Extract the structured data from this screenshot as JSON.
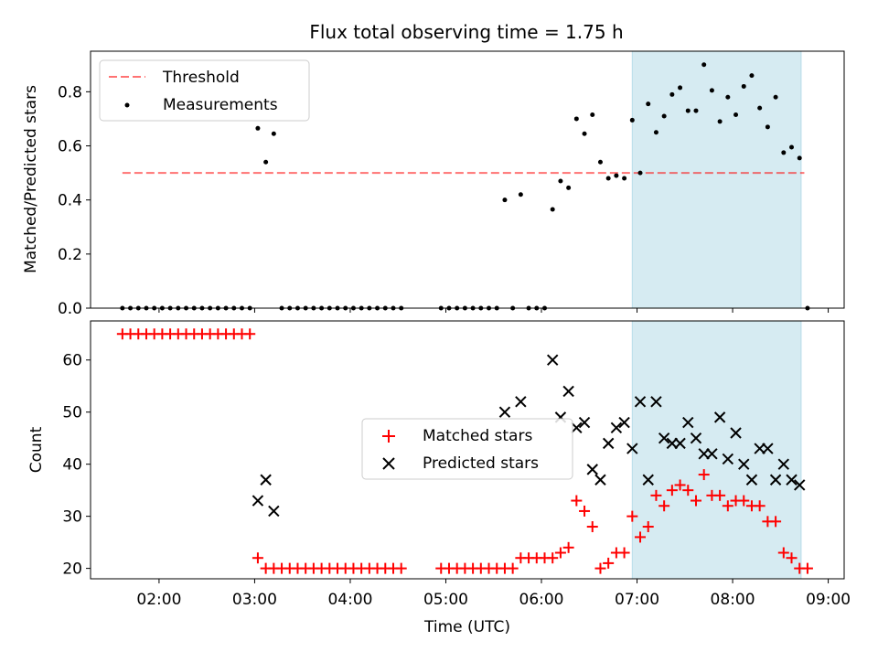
{
  "figure": {
    "title": "Flux total observing time = 1.75 h"
  },
  "colors": {
    "shade": "#add8e6",
    "threshold": "#ff0000",
    "matched": "#ff0000",
    "predicted": "#000000",
    "measure": "#000000"
  },
  "chart_data": [
    {
      "type": "scatter",
      "panel": "top",
      "ylabel": "Matched/Predicted stars",
      "ylim": [
        0,
        0.95
      ],
      "xlim": [
        "01:17",
        "09:10"
      ],
      "yticks": [
        "0.0",
        "0.2",
        "0.4",
        "0.6",
        "0.8"
      ],
      "grid": false,
      "shaded_interval": [
        "06:57",
        "08:43"
      ],
      "legend": {
        "placement": "upper-left",
        "entries": [
          "Threshold",
          "Measurements"
        ]
      },
      "threshold": {
        "name": "Threshold",
        "value": 0.5,
        "x_range": [
          "01:37",
          "08:45"
        ]
      },
      "series": [
        {
          "name": "Measurements",
          "points": [
            [
              "01:37",
              0
            ],
            [
              "01:42",
              0
            ],
            [
              "01:47",
              0
            ],
            [
              "01:52",
              0
            ],
            [
              "01:57",
              0
            ],
            [
              "02:02",
              0
            ],
            [
              "02:07",
              0
            ],
            [
              "02:12",
              0
            ],
            [
              "02:17",
              0
            ],
            [
              "02:22",
              0
            ],
            [
              "02:27",
              0
            ],
            [
              "02:32",
              0
            ],
            [
              "02:37",
              0
            ],
            [
              "02:42",
              0
            ],
            [
              "02:47",
              0
            ],
            [
              "02:52",
              0
            ],
            [
              "02:57",
              0
            ],
            [
              "03:02",
              0.665
            ],
            [
              "03:07",
              0.54
            ],
            [
              "03:12",
              0.645
            ],
            [
              "03:17",
              0
            ],
            [
              "03:22",
              0
            ],
            [
              "03:27",
              0
            ],
            [
              "03:32",
              0
            ],
            [
              "03:37",
              0
            ],
            [
              "03:42",
              0
            ],
            [
              "03:47",
              0
            ],
            [
              "03:52",
              0
            ],
            [
              "03:57",
              0
            ],
            [
              "04:02",
              0
            ],
            [
              "04:07",
              0
            ],
            [
              "04:12",
              0
            ],
            [
              "04:17",
              0
            ],
            [
              "04:22",
              0
            ],
            [
              "04:27",
              0
            ],
            [
              "04:32",
              0
            ],
            [
              "04:57",
              0
            ],
            [
              "05:02",
              0
            ],
            [
              "05:07",
              0
            ],
            [
              "05:12",
              0
            ],
            [
              "05:17",
              0
            ],
            [
              "05:22",
              0
            ],
            [
              "05:27",
              0
            ],
            [
              "05:32",
              0
            ],
            [
              "05:37",
              0.4
            ],
            [
              "05:42",
              0
            ],
            [
              "05:47",
              0.42
            ],
            [
              "05:52",
              0
            ],
            [
              "05:57",
              0
            ],
            [
              "06:02",
              0
            ],
            [
              "06:07",
              0.365
            ],
            [
              "06:12",
              0.47
            ],
            [
              "06:17",
              0.445
            ],
            [
              "06:22",
              0.7
            ],
            [
              "06:27",
              0.645
            ],
            [
              "06:32",
              0.715
            ],
            [
              "06:37",
              0.54
            ],
            [
              "06:42",
              0.48
            ],
            [
              "06:47",
              0.49
            ],
            [
              "06:52",
              0.48
            ],
            [
              "06:57",
              0.695
            ],
            [
              "07:02",
              0.5
            ],
            [
              "07:07",
              0.755
            ],
            [
              "07:12",
              0.65
            ],
            [
              "07:17",
              0.71
            ],
            [
              "07:22",
              0.79
            ],
            [
              "07:27",
              0.815
            ],
            [
              "07:32",
              0.73
            ],
            [
              "07:37",
              0.73
            ],
            [
              "07:42",
              0.9
            ],
            [
              "07:47",
              0.805
            ],
            [
              "07:52",
              0.69
            ],
            [
              "07:57",
              0.78
            ],
            [
              "08:02",
              0.715
            ],
            [
              "08:07",
              0.82
            ],
            [
              "08:12",
              0.86
            ],
            [
              "08:17",
              0.74
            ],
            [
              "08:22",
              0.67
            ],
            [
              "08:27",
              0.78
            ],
            [
              "08:32",
              0.575
            ],
            [
              "08:37",
              0.595
            ],
            [
              "08:42",
              0.555
            ],
            [
              "08:47",
              0
            ]
          ]
        }
      ],
      "x_tick_labels": []
    },
    {
      "type": "scatter",
      "panel": "bottom",
      "xlabel": "Time (UTC)",
      "ylabel": "Count",
      "ylim": [
        18,
        67.5
      ],
      "xlim": [
        "01:17",
        "09:10"
      ],
      "yticks": [
        "20",
        "30",
        "40",
        "50",
        "60"
      ],
      "x_tick_labels": [
        "02:00",
        "03:00",
        "04:00",
        "05:00",
        "06:00",
        "07:00",
        "08:00",
        "09:00"
      ],
      "grid": false,
      "shaded_interval": [
        "06:57",
        "08:43"
      ],
      "legend": {
        "placement": "center",
        "entries": [
          "Matched stars",
          "Predicted stars"
        ]
      },
      "series": [
        {
          "name": "Matched stars",
          "marker": "+",
          "points": [
            [
              "01:37",
              65
            ],
            [
              "01:42",
              65
            ],
            [
              "01:47",
              65
            ],
            [
              "01:52",
              65
            ],
            [
              "01:57",
              65
            ],
            [
              "02:02",
              65
            ],
            [
              "02:07",
              65
            ],
            [
              "02:12",
              65
            ],
            [
              "02:17",
              65
            ],
            [
              "02:22",
              65
            ],
            [
              "02:27",
              65
            ],
            [
              "02:32",
              65
            ],
            [
              "02:37",
              65
            ],
            [
              "02:42",
              65
            ],
            [
              "02:47",
              65
            ],
            [
              "02:52",
              65
            ],
            [
              "02:57",
              65
            ],
            [
              "03:02",
              22
            ],
            [
              "03:07",
              20
            ],
            [
              "03:12",
              20
            ],
            [
              "03:17",
              20
            ],
            [
              "03:22",
              20
            ],
            [
              "03:27",
              20
            ],
            [
              "03:32",
              20
            ],
            [
              "03:37",
              20
            ],
            [
              "03:42",
              20
            ],
            [
              "03:47",
              20
            ],
            [
              "03:52",
              20
            ],
            [
              "03:57",
              20
            ],
            [
              "04:02",
              20
            ],
            [
              "04:07",
              20
            ],
            [
              "04:12",
              20
            ],
            [
              "04:17",
              20
            ],
            [
              "04:22",
              20
            ],
            [
              "04:27",
              20
            ],
            [
              "04:32",
              20
            ],
            [
              "04:57",
              20
            ],
            [
              "05:02",
              20
            ],
            [
              "05:07",
              20
            ],
            [
              "05:12",
              20
            ],
            [
              "05:17",
              20
            ],
            [
              "05:22",
              20
            ],
            [
              "05:27",
              20
            ],
            [
              "05:32",
              20
            ],
            [
              "05:37",
              20
            ],
            [
              "05:42",
              20
            ],
            [
              "05:47",
              22
            ],
            [
              "05:52",
              22
            ],
            [
              "05:57",
              22
            ],
            [
              "06:02",
              22
            ],
            [
              "06:07",
              22
            ],
            [
              "06:12",
              23
            ],
            [
              "06:17",
              24
            ],
            [
              "06:22",
              33
            ],
            [
              "06:27",
              31
            ],
            [
              "06:32",
              28
            ],
            [
              "06:37",
              20
            ],
            [
              "06:42",
              21
            ],
            [
              "06:47",
              23
            ],
            [
              "06:52",
              23
            ],
            [
              "06:57",
              30
            ],
            [
              "07:02",
              26
            ],
            [
              "07:07",
              28
            ],
            [
              "07:12",
              34
            ],
            [
              "07:17",
              32
            ],
            [
              "07:22",
              35
            ],
            [
              "07:27",
              36
            ],
            [
              "07:32",
              35
            ],
            [
              "07:37",
              33
            ],
            [
              "07:42",
              38
            ],
            [
              "07:47",
              34
            ],
            [
              "07:52",
              34
            ],
            [
              "07:57",
              32
            ],
            [
              "08:02",
              33
            ],
            [
              "08:07",
              33
            ],
            [
              "08:12",
              32
            ],
            [
              "08:17",
              32
            ],
            [
              "08:22",
              29
            ],
            [
              "08:27",
              29
            ],
            [
              "08:32",
              23
            ],
            [
              "08:37",
              22
            ],
            [
              "08:42",
              20
            ],
            [
              "08:47",
              20
            ]
          ]
        },
        {
          "name": "Predicted stars",
          "marker": "x",
          "points": [
            [
              "03:02",
              33
            ],
            [
              "03:07",
              37
            ],
            [
              "03:12",
              31
            ],
            [
              "05:37",
              50
            ],
            [
              "05:47",
              52
            ],
            [
              "06:07",
              60
            ],
            [
              "06:12",
              49
            ],
            [
              "06:17",
              54
            ],
            [
              "06:22",
              47
            ],
            [
              "06:27",
              48
            ],
            [
              "06:32",
              39
            ],
            [
              "06:37",
              37
            ],
            [
              "06:42",
              44
            ],
            [
              "06:47",
              47
            ],
            [
              "06:52",
              48
            ],
            [
              "06:57",
              43
            ],
            [
              "07:02",
              52
            ],
            [
              "07:07",
              37
            ],
            [
              "07:12",
              52
            ],
            [
              "07:17",
              45
            ],
            [
              "07:22",
              44
            ],
            [
              "07:27",
              44
            ],
            [
              "07:32",
              48
            ],
            [
              "07:37",
              45
            ],
            [
              "07:42",
              42
            ],
            [
              "07:47",
              42
            ],
            [
              "07:52",
              49
            ],
            [
              "07:57",
              41
            ],
            [
              "08:02",
              46
            ],
            [
              "08:07",
              40
            ],
            [
              "08:12",
              37
            ],
            [
              "08:17",
              43
            ],
            [
              "08:22",
              43
            ],
            [
              "08:27",
              37
            ],
            [
              "08:32",
              40
            ],
            [
              "08:37",
              37
            ],
            [
              "08:42",
              36
            ]
          ]
        }
      ]
    }
  ]
}
